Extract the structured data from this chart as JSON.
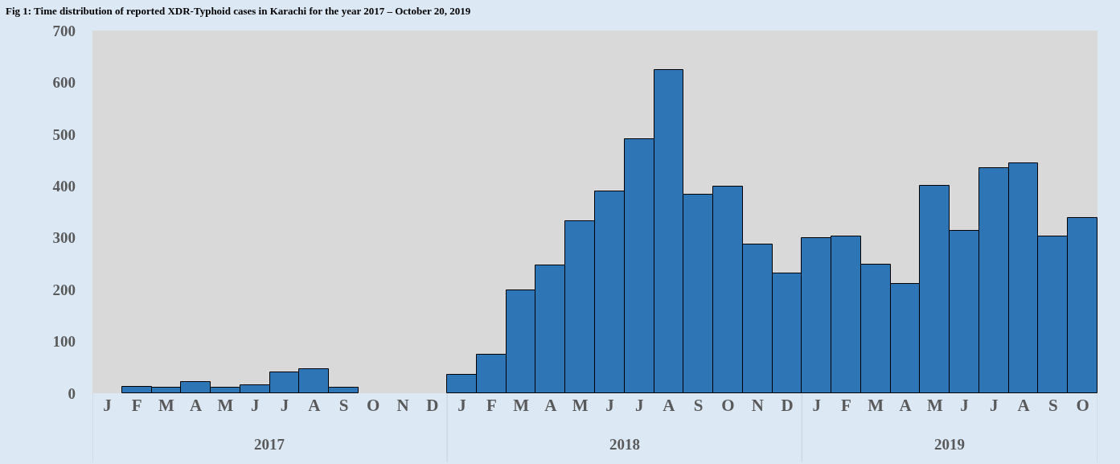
{
  "chart_data": {
    "type": "bar",
    "title": "Fig 1: Time distribution of reported XDR-Typhoid cases in Karachi for the year 2017 – October 20, 2019",
    "categories": [
      "J",
      "F",
      "M",
      "A",
      "M",
      "J",
      "J",
      "A",
      "S",
      "O",
      "N",
      "D",
      "J",
      "F",
      "M",
      "A",
      "M",
      "J",
      "J",
      "A",
      "S",
      "O",
      "N",
      "D",
      "J",
      "F",
      "M",
      "A",
      "M",
      "J",
      "J",
      "A",
      "S",
      "O"
    ],
    "values": [
      null,
      13,
      11,
      21,
      11,
      15,
      41,
      47,
      11,
      null,
      null,
      null,
      35,
      75,
      199,
      247,
      332,
      390,
      490,
      624,
      383,
      399,
      287,
      231,
      299,
      303,
      249,
      211,
      401,
      313,
      434,
      444,
      303,
      339
    ],
    "color": "#2e75b6",
    "ylim": [
      0,
      700
    ],
    "yticks": [
      0,
      100,
      200,
      300,
      400,
      500,
      600,
      700
    ],
    "annotations": [
      "2017",
      "2018",
      "2019"
    ],
    "grid": false,
    "legend": false
  }
}
